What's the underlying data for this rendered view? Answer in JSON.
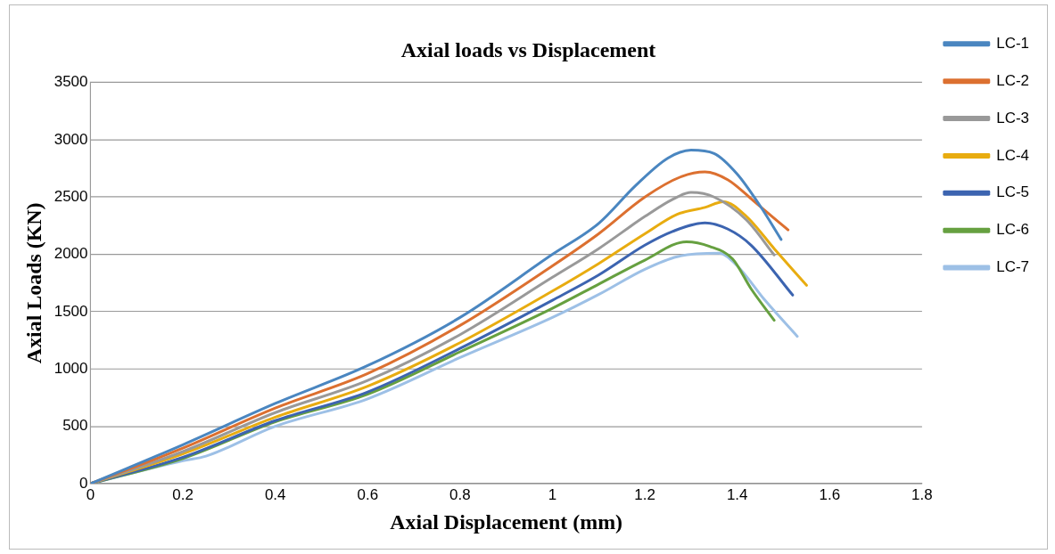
{
  "chart_data": {
    "type": "line",
    "title": "Axial loads vs Displacement",
    "xlabel": "Axial Displacement (mm)",
    "ylabel": "Axial Loads (KN)",
    "xlim": [
      0,
      1.8
    ],
    "xticks": [
      0,
      0.2,
      0.4,
      0.6,
      0.8,
      1,
      1.2,
      1.4,
      1.6,
      1.8
    ],
    "ylim": [
      0,
      3500
    ],
    "yticks": [
      0,
      500,
      1000,
      1500,
      2000,
      2500,
      3000,
      3500
    ],
    "grid": "y",
    "legend": "right",
    "marker": "none",
    "line_style": "solid",
    "series": [
      {
        "name": "LC-1",
        "color": "#4a86c0",
        "x": [
          0,
          0.2,
          0.4,
          0.6,
          0.8,
          1.0,
          1.1,
          1.18,
          1.25,
          1.3,
          1.35,
          1.4,
          1.45,
          1.495
        ],
        "values": [
          0,
          340,
          700,
          1030,
          1450,
          2000,
          2270,
          2600,
          2840,
          2910,
          2880,
          2700,
          2420,
          2130
        ]
      },
      {
        "name": "LC-2",
        "color": "#dc7030",
        "x": [
          0,
          0.2,
          0.4,
          0.6,
          0.8,
          1.0,
          1.1,
          1.2,
          1.28,
          1.33,
          1.38,
          1.44,
          1.51
        ],
        "values": [
          0,
          310,
          660,
          960,
          1380,
          1900,
          2180,
          2500,
          2680,
          2720,
          2650,
          2450,
          2214
        ]
      },
      {
        "name": "LC-3",
        "color": "#999999",
        "x": [
          0,
          0.2,
          0.4,
          0.6,
          0.8,
          1.0,
          1.1,
          1.2,
          1.26,
          1.3,
          1.35,
          1.42,
          1.48
        ],
        "values": [
          0,
          280,
          620,
          900,
          1300,
          1800,
          2050,
          2330,
          2480,
          2540,
          2500,
          2300,
          1995
        ]
      },
      {
        "name": "LC-4",
        "color": "#e8ac10",
        "x": [
          0,
          0.2,
          0.4,
          0.6,
          0.8,
          1.0,
          1.1,
          1.2,
          1.27,
          1.33,
          1.37,
          1.42,
          1.48,
          1.55
        ],
        "values": [
          0,
          260,
          580,
          850,
          1230,
          1680,
          1920,
          2180,
          2350,
          2410,
          2460,
          2330,
          2050,
          1730
        ]
      },
      {
        "name": "LC-5",
        "color": "#3c64b0",
        "x": [
          0,
          0.2,
          0.4,
          0.6,
          0.8,
          1.0,
          1.1,
          1.2,
          1.26,
          1.33,
          1.38,
          1.43,
          1.52
        ],
        "values": [
          0,
          230,
          550,
          800,
          1180,
          1600,
          1820,
          2080,
          2200,
          2275,
          2220,
          2080,
          1645
        ]
      },
      {
        "name": "LC-6",
        "color": "#66a040",
        "x": [
          0,
          0.2,
          0.4,
          0.6,
          0.8,
          1.0,
          1.1,
          1.2,
          1.29,
          1.34,
          1.39,
          1.43,
          1.48
        ],
        "values": [
          0,
          220,
          540,
          780,
          1150,
          1530,
          1740,
          1950,
          2110,
          2070,
          1960,
          1700,
          1425
        ]
      },
      {
        "name": "LC-7",
        "color": "#9dc0e6",
        "x": [
          0,
          0.2,
          0.25,
          0.4,
          0.6,
          0.8,
          1.0,
          1.1,
          1.2,
          1.27,
          1.36,
          1.4,
          1.46,
          1.53
        ],
        "values": [
          0,
          200,
          240,
          500,
          740,
          1100,
          1450,
          1650,
          1870,
          1980,
          2010,
          1900,
          1600,
          1285
        ]
      }
    ]
  }
}
